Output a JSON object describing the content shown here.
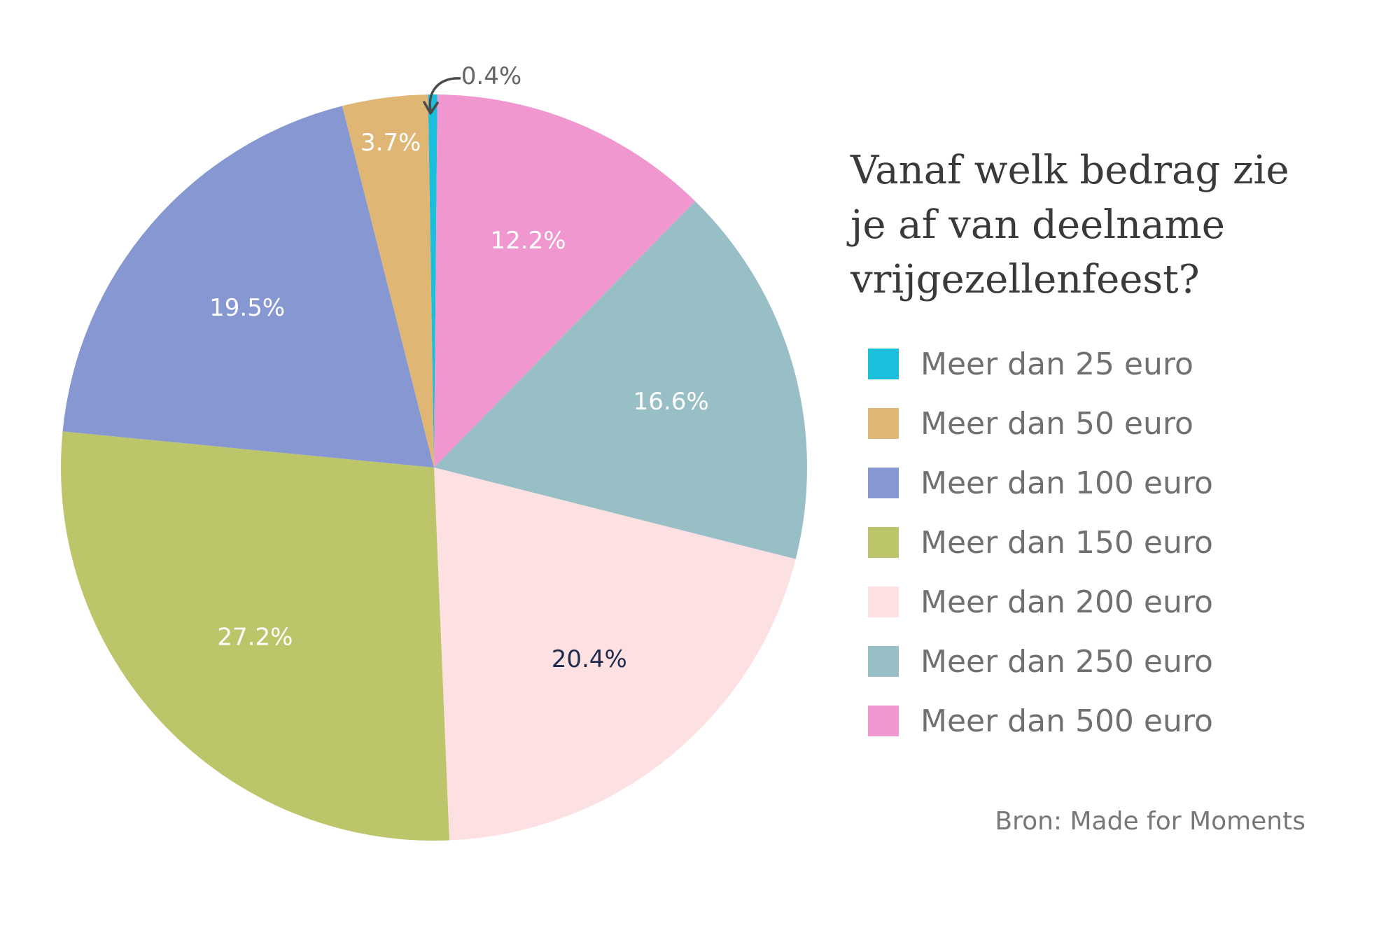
{
  "chart_data": {
    "type": "pie",
    "title_lines": [
      "Vanaf welk bedrag zie",
      "je af van deelname",
      "vrijgezellenfeest?"
    ],
    "slices": [
      {
        "label": "Meer dan 25 euro",
        "value": 0.4,
        "display": "0.4%",
        "color": "#1bbfdb",
        "label_color": "#666666"
      },
      {
        "label": "Meer dan 500 euro",
        "value": 12.2,
        "display": "12.2%",
        "color": "#f097cf",
        "label_color": "#ffffff"
      },
      {
        "label": "Meer dan 250 euro",
        "value": 16.6,
        "display": "16.6%",
        "color": "#98bec6",
        "label_color": "#ffffff"
      },
      {
        "label": "Meer dan 200 euro",
        "value": 20.4,
        "display": "20.4%",
        "color": "#fde1e2",
        "label_color": "#1f2b4d"
      },
      {
        "label": "Meer dan 150 euro",
        "value": 27.2,
        "display": "27.2%",
        "color": "#bdc56a",
        "label_color": "#ffffff"
      },
      {
        "label": "Meer dan 100 euro",
        "value": 19.5,
        "display": "19.5%",
        "color": "#8797d2",
        "label_color": "#ffffff"
      },
      {
        "label": "Meer dan 50 euro",
        "value": 3.7,
        "display": "3.7%",
        "color": "#e0b675",
        "label_color": "#ffffff"
      }
    ],
    "legend": [
      {
        "label": "Meer dan 25 euro",
        "color": "#1bbfdb"
      },
      {
        "label": "Meer dan 50 euro",
        "color": "#e0b675"
      },
      {
        "label": "Meer dan 100 euro",
        "color": "#8797d2"
      },
      {
        "label": "Meer dan 150 euro",
        "color": "#bdc56a"
      },
      {
        "label": "Meer dan 200 euro",
        "color": "#fde1e2"
      },
      {
        "label": "Meer dan 250 euro",
        "color": "#98bec6"
      },
      {
        "label": "Meer dan 500 euro",
        "color": "#f097cf"
      }
    ],
    "legend_position": "right"
  },
  "source": "Bron: Made for Moments"
}
